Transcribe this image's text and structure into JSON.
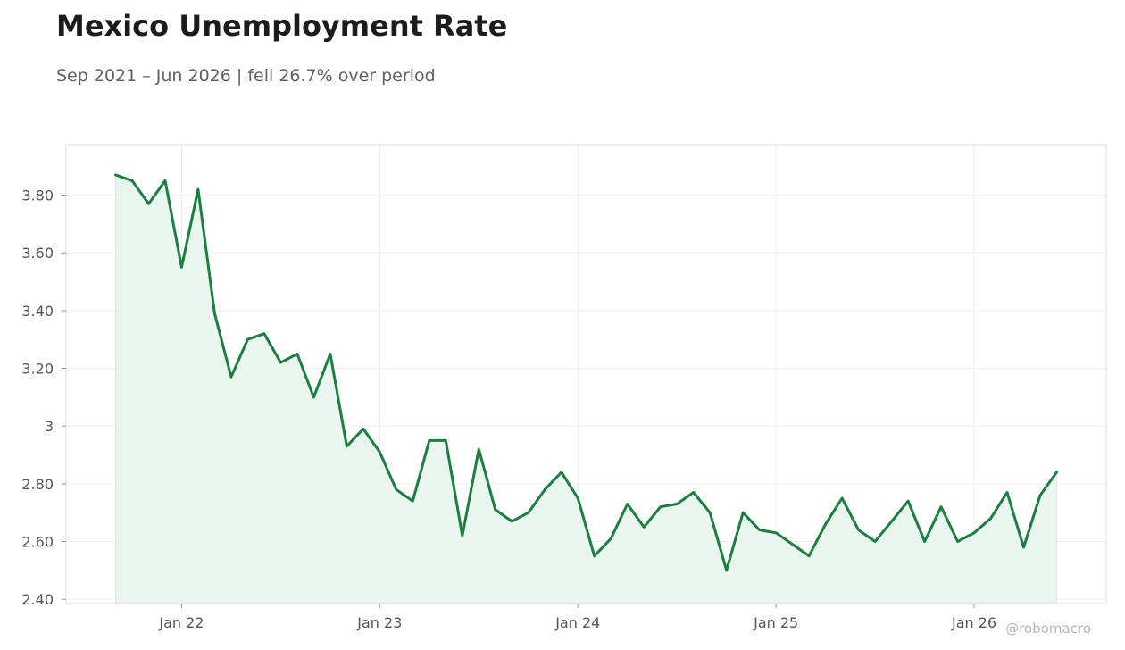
{
  "header": {
    "title": "Mexico Unemployment Rate",
    "subtitle": "Sep 2021 – Jun 2026 | fell 26.7% over period"
  },
  "watermark": "@robomacro",
  "colors": {
    "line": "#1a7f3f",
    "fill": "#e8f3ec",
    "grid": "#eeeeee",
    "frame": "#dddddd"
  },
  "chart_data": {
    "type": "area",
    "title": "Mexico Unemployment Rate",
    "subtitle": "Sep 2021 – Jun 2026 | fell 26.7% over period",
    "xlabel": "",
    "ylabel": "",
    "x_start": "2021-09",
    "x_end": "2026-06",
    "x_range": [
      "2021-06",
      "2026-09"
    ],
    "y_range": [
      2.385,
      3.975
    ],
    "y_ticks": [
      2.4,
      2.6,
      2.8,
      3.0,
      3.2,
      3.4,
      3.6,
      3.8
    ],
    "y_tick_labels": [
      "2.40",
      "2.60",
      "2.80",
      "3",
      "3.20",
      "3.40",
      "3.60",
      "3.80"
    ],
    "x_ticks": [
      "2022-01",
      "2023-01",
      "2024-01",
      "2025-01",
      "2026-01"
    ],
    "x_tick_labels": [
      "Jan 22",
      "Jan 23",
      "Jan 24",
      "Jan 25",
      "Jan 26"
    ],
    "grid": true,
    "legend": "none",
    "values": [
      3.87,
      3.85,
      3.77,
      3.85,
      3.55,
      3.82,
      3.39,
      3.17,
      3.3,
      3.32,
      3.22,
      3.25,
      3.1,
      3.25,
      2.93,
      2.99,
      2.91,
      2.78,
      2.74,
      2.95,
      2.95,
      2.62,
      2.92,
      2.71,
      2.67,
      2.7,
      2.78,
      2.84,
      2.75,
      2.55,
      2.61,
      2.73,
      2.65,
      2.72,
      2.73,
      2.77,
      2.7,
      2.5,
      2.7,
      2.64,
      2.63,
      2.59,
      2.55,
      2.66,
      2.75,
      2.64,
      2.6,
      2.67,
      2.74,
      2.6,
      2.72,
      2.6,
      2.63,
      2.68,
      2.77,
      2.58,
      2.76,
      2.84
    ]
  }
}
